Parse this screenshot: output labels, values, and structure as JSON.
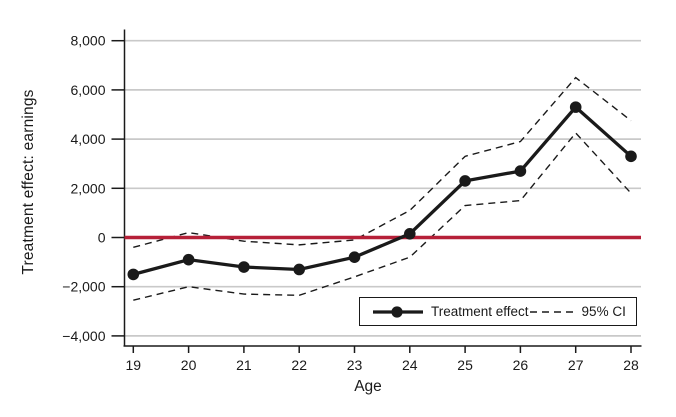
{
  "chart_data": {
    "type": "line",
    "title": "",
    "xlabel": "Age",
    "ylabel": "Treatment effect: earnings",
    "x": [
      19,
      20,
      21,
      22,
      23,
      24,
      25,
      26,
      27,
      28
    ],
    "xtick_labels": [
      "19",
      "20",
      "21",
      "22",
      "23",
      "24",
      "25",
      "26",
      "27",
      "28"
    ],
    "series": [
      {
        "name": "Treatment effect",
        "style": "solid",
        "marker": "filled-circle",
        "values": [
          -1500,
          -900,
          -1200,
          -1300,
          -800,
          150,
          2300,
          2700,
          5300,
          3300
        ]
      },
      {
        "name": "95% CI upper bound",
        "style": "dashed",
        "marker": "none",
        "values": [
          -400,
          200,
          -150,
          -300,
          -100,
          1100,
          3300,
          3900,
          6500,
          4750
        ]
      },
      {
        "name": "95% CI lower bound",
        "style": "dashed",
        "marker": "none",
        "values": [
          -2550,
          -2000,
          -2300,
          -2350,
          -1600,
          -800,
          1300,
          1500,
          4250,
          1800
        ]
      }
    ],
    "ylim": [
      -4000,
      8000
    ],
    "yticks": [
      {
        "value": 8000,
        "label": "8,000"
      },
      {
        "value": 6000,
        "label": "6,000"
      },
      {
        "value": 4000,
        "label": "4,000"
      },
      {
        "value": 2000,
        "label": "2,000"
      },
      {
        "value": 0,
        "label": "0"
      },
      {
        "value": -2000,
        "label": "−2,000"
      },
      {
        "value": -4000,
        "label": "−4,000"
      }
    ],
    "refline": {
      "value": 0,
      "color": "#b62038"
    },
    "grid": true,
    "legend_position": "bottom-right-inside",
    "legend": [
      {
        "label": "Treatment effect"
      },
      {
        "label": "95% CI"
      }
    ],
    "colors": {
      "line": "#1a1a1a",
      "ci": "#1a1a1a",
      "grid": "#c9c9c9",
      "axis": "#1a1a1a",
      "text": "#1a1a1a",
      "background": "#ffffff"
    }
  }
}
